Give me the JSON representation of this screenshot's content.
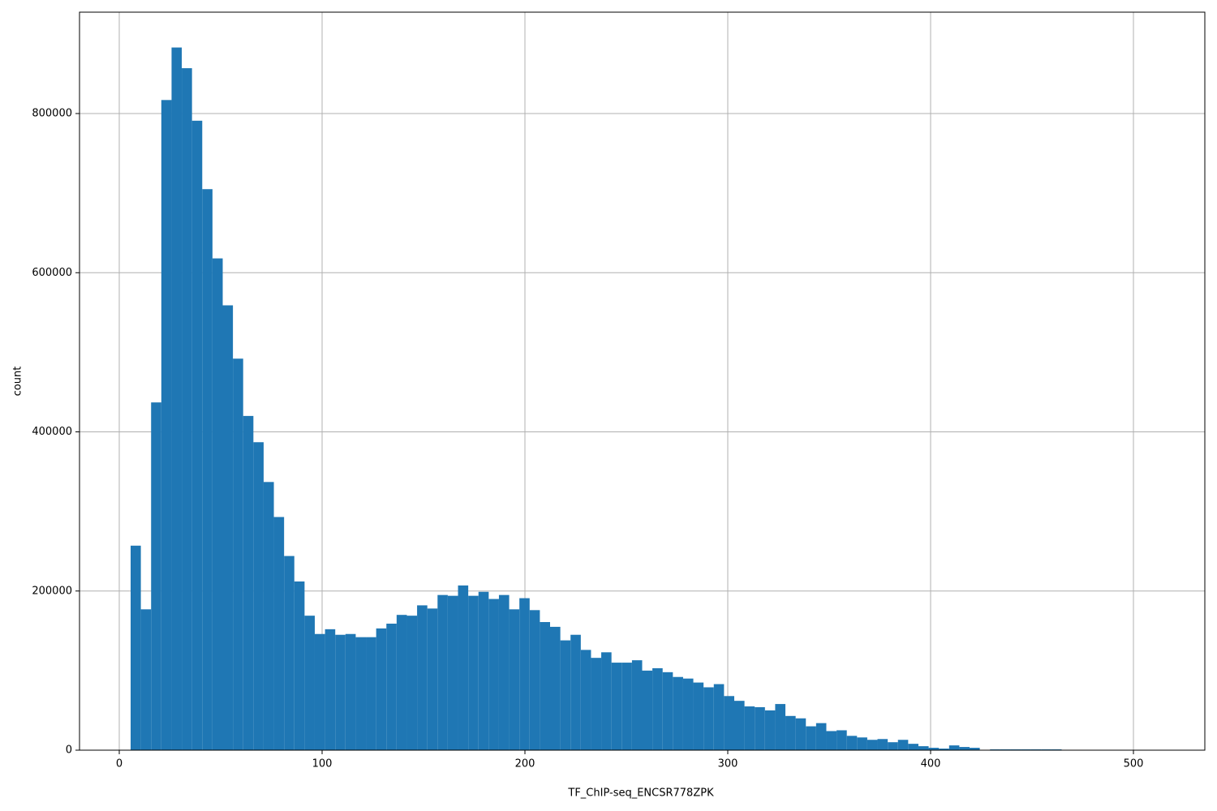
{
  "chart_data": {
    "type": "histogram",
    "xlabel": "TF_ChIP-seq_ENCSR778ZPK",
    "ylabel": "count",
    "color": "#1f77b4",
    "grid": true,
    "bins": [
      5.6,
      10.64,
      15.69,
      20.73,
      25.78,
      30.82,
      35.86,
      40.91,
      45.95,
      51.0,
      56.04,
      61.08,
      66.13,
      71.17,
      76.22,
      81.26,
      86.3,
      91.35,
      96.39,
      101.44,
      106.48,
      111.52,
      116.57,
      121.61,
      126.66,
      131.7,
      136.74,
      141.79,
      146.83,
      151.88,
      156.92,
      161.96,
      167.01,
      172.05,
      177.1,
      182.14,
      187.18,
      192.23,
      197.27,
      202.32,
      207.36,
      212.4,
      217.45,
      222.49,
      227.54,
      232.58,
      237.62,
      242.67,
      247.71,
      252.76,
      257.8,
      262.84,
      267.89,
      272.93,
      277.98,
      283.02,
      288.06,
      293.11,
      298.15,
      303.2,
      308.24,
      313.28,
      318.33,
      323.37,
      328.42,
      333.46,
      338.5,
      343.55,
      348.59,
      353.64,
      358.68,
      363.72,
      368.77,
      373.81,
      378.86,
      383.9,
      388.94,
      393.99,
      399.03,
      404.08,
      409.12,
      414.16,
      419.21,
      424.25,
      429.3,
      434.34,
      439.38,
      444.43,
      449.47,
      454.52,
      459.56,
      464.6,
      469.65,
      474.69,
      479.74,
      484.78,
      489.82,
      494.87,
      499.91,
      504.96,
      510.0
    ],
    "counts": [
      257000,
      177000,
      437000,
      817000,
      883000,
      857000,
      791000,
      705000,
      618000,
      559000,
      492000,
      420000,
      387000,
      337000,
      293000,
      244000,
      212000,
      169000,
      146000,
      152000,
      145000,
      146000,
      142000,
      142000,
      153000,
      159000,
      170000,
      169000,
      182000,
      178000,
      195000,
      194000,
      207000,
      194000,
      199000,
      190000,
      195000,
      177000,
      191000,
      176000,
      161000,
      155000,
      138000,
      145000,
      126000,
      116000,
      123000,
      110000,
      110000,
      113000,
      100000,
      103000,
      98000,
      92000,
      90000,
      85000,
      79000,
      83000,
      68000,
      62000,
      55000,
      54000,
      50000,
      58000,
      43000,
      40000,
      30000,
      34000,
      24000,
      25000,
      18000,
      16000,
      13000,
      14000,
      10000,
      13000,
      8000,
      5000,
      3000,
      2000,
      6000,
      4000,
      3000,
      0,
      1000,
      1000,
      1000,
      1000,
      1000,
      1000,
      1000,
      0,
      0,
      0,
      0,
      0,
      0,
      0,
      0,
      0
    ],
    "xlim": [
      -19.6,
      535.2
    ],
    "ylim": [
      0,
      927400
    ],
    "xticks": [
      0,
      100,
      200,
      300,
      400,
      500
    ],
    "yticks": [
      0,
      200000,
      400000,
      600000,
      800000
    ]
  }
}
